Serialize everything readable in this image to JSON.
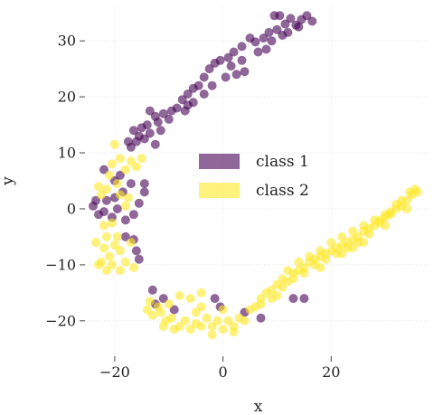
{
  "chart_data": {
    "type": "scatter",
    "title": "",
    "xlabel": "x",
    "ylabel": "y",
    "xlim": [
      -25,
      38
    ],
    "ylim": [
      -26,
      36
    ],
    "xticks": [
      -20,
      0,
      20
    ],
    "yticks": [
      -20,
      -10,
      0,
      10,
      20,
      30
    ],
    "xtick_labels": [
      "−20",
      "0",
      "20"
    ],
    "ytick_labels": [
      "−20",
      "−10",
      "0",
      "10",
      "20",
      "30"
    ],
    "grid": true,
    "legend_position": "center",
    "series": [
      {
        "name": "class 1",
        "color": "#440154",
        "points": [
          [
            9.5,
            34.5
          ],
          [
            10.5,
            34.5
          ],
          [
            12.5,
            34
          ],
          [
            14.5,
            33.8
          ],
          [
            15.5,
            34.5
          ],
          [
            16.5,
            33.5
          ],
          [
            13.5,
            32.8
          ],
          [
            11.5,
            33
          ],
          [
            10,
            32
          ],
          [
            8.5,
            31.5
          ],
          [
            7.5,
            30.5
          ],
          [
            6,
            29.8
          ],
          [
            5,
            30.5
          ],
          [
            3.5,
            29
          ],
          [
            2,
            28
          ],
          [
            1,
            27
          ],
          [
            -0.5,
            26.5
          ],
          [
            -1.5,
            26
          ],
          [
            -2.5,
            25
          ],
          [
            1.5,
            25.5
          ],
          [
            3.5,
            26.5
          ],
          [
            4,
            24.5
          ],
          [
            2.5,
            24
          ],
          [
            0.5,
            23.5
          ],
          [
            -3.5,
            23.5
          ],
          [
            -4.5,
            22
          ],
          [
            -5.5,
            21.5
          ],
          [
            -6.5,
            20.5
          ],
          [
            -3.5,
            20.5
          ],
          [
            -5.5,
            19
          ],
          [
            -6.5,
            18.5
          ],
          [
            -7.5,
            19.5
          ],
          [
            -8.5,
            18
          ],
          [
            -9.5,
            17.5
          ],
          [
            -11,
            17
          ],
          [
            -12.5,
            16.5
          ],
          [
            -13.5,
            17.5
          ],
          [
            -12,
            15.5
          ],
          [
            -14,
            15
          ],
          [
            -15,
            14.5
          ],
          [
            -16.5,
            14
          ],
          [
            -15.5,
            13
          ],
          [
            -16,
            12
          ],
          [
            -14.5,
            12.5
          ],
          [
            -13.5,
            13.5
          ],
          [
            -11.5,
            14
          ],
          [
            -12.5,
            11.5
          ],
          [
            -17,
            11
          ],
          [
            -19,
            6
          ],
          [
            -18.5,
            3
          ],
          [
            -20,
            2
          ],
          [
            -21.5,
            1.5
          ],
          [
            -19.5,
            0
          ],
          [
            -22,
            -0.5
          ],
          [
            -23,
            -1
          ],
          [
            -20.5,
            -1.5
          ],
          [
            -18,
            -2
          ],
          [
            -16.5,
            -1
          ],
          [
            -15.5,
            1
          ],
          [
            -14.5,
            3
          ],
          [
            -14.5,
            4.5
          ],
          [
            -17,
            4.5
          ],
          [
            -20,
            5
          ],
          [
            -22,
            7
          ],
          [
            -23.5,
            1.5
          ],
          [
            -24,
            0.5
          ],
          [
            -18,
            -5
          ],
          [
            -16.5,
            -5.5
          ],
          [
            -16,
            -7.5
          ],
          [
            -15.5,
            -9
          ],
          [
            -13,
            -14.5
          ],
          [
            -12.5,
            -17
          ],
          [
            -1.5,
            -16
          ],
          [
            -0.5,
            -17.5
          ],
          [
            4,
            -18.5
          ],
          [
            7,
            -19.5
          ],
          [
            15,
            -16
          ],
          [
            13,
            -16
          ],
          [
            -11,
            -16
          ],
          [
            -9,
            -18
          ],
          [
            12,
            31.5
          ],
          [
            14,
            32.5
          ],
          [
            8,
            28.5
          ],
          [
            6.5,
            28
          ],
          [
            9,
            30
          ],
          [
            11,
            31
          ],
          [
            -2,
            22
          ],
          [
            -7,
            17.5
          ],
          [
            -10,
            16
          ],
          [
            -17.5,
            12
          ]
        ]
      },
      {
        "name": "class 2",
        "color": "#fde725",
        "points": [
          [
            -20,
            11.5
          ],
          [
            -20.5,
            8
          ],
          [
            -19,
            9
          ],
          [
            -17,
            8.5
          ],
          [
            -16,
            7.5
          ],
          [
            -15,
            9
          ],
          [
            -18,
            7
          ],
          [
            -21,
            6
          ],
          [
            -19.5,
            4.5
          ],
          [
            -21.5,
            3.5
          ],
          [
            -22.5,
            2.5
          ],
          [
            -23,
            4
          ],
          [
            -19,
            2.5
          ],
          [
            -17.5,
            2
          ],
          [
            -18,
            0.5
          ],
          [
            -20.5,
            -2.5
          ],
          [
            -22,
            -3
          ],
          [
            -21.5,
            -5
          ],
          [
            -23.5,
            -6
          ],
          [
            -22,
            -7
          ],
          [
            -20,
            -6.5
          ],
          [
            -19,
            -7.5
          ],
          [
            -21,
            -8.5
          ],
          [
            -22.5,
            -9.5
          ],
          [
            -20.5,
            -10
          ],
          [
            -19,
            -11
          ],
          [
            -21.5,
            -11
          ],
          [
            -23,
            -10
          ],
          [
            -18,
            -9.5
          ],
          [
            -19.5,
            -5
          ],
          [
            -17,
            -6
          ],
          [
            -16.5,
            -10.5
          ],
          [
            -14,
            -18
          ],
          [
            -13,
            -19
          ],
          [
            -11.5,
            -18.5
          ],
          [
            -10.5,
            -20
          ],
          [
            -9.5,
            -19.5
          ],
          [
            -8,
            -21
          ],
          [
            -7,
            -20
          ],
          [
            -6,
            -21.5
          ],
          [
            -5,
            -20.5
          ],
          [
            -4,
            -21
          ],
          [
            -3,
            -19.5
          ],
          [
            -2,
            -21
          ],
          [
            -1,
            -20
          ],
          [
            0,
            -21.5
          ],
          [
            1,
            -20
          ],
          [
            2,
            -21
          ],
          [
            3,
            -19.5
          ],
          [
            2,
            -22
          ],
          [
            -2,
            -22.5
          ],
          [
            -4,
            -17.5
          ],
          [
            -6,
            -16
          ],
          [
            -8,
            -15.5
          ],
          [
            -12,
            -17.5
          ],
          [
            -13.5,
            -16.5
          ],
          [
            -11,
            -21
          ],
          [
            -9,
            -21.5
          ],
          [
            5,
            -18
          ],
          [
            6,
            -17.5
          ],
          [
            7,
            -16
          ],
          [
            8,
            -15
          ],
          [
            9,
            -14.5
          ],
          [
            10,
            -13.5
          ],
          [
            11,
            -12.5
          ],
          [
            12,
            -13
          ],
          [
            13,
            -11.5
          ],
          [
            14,
            -11
          ],
          [
            15,
            -10.5
          ],
          [
            16,
            -9.5
          ],
          [
            17,
            -9
          ],
          [
            18,
            -8.5
          ],
          [
            19,
            -8
          ],
          [
            20,
            -7.5
          ],
          [
            21,
            -7
          ],
          [
            22,
            -6.5
          ],
          [
            23,
            -6
          ],
          [
            24,
            -5.5
          ],
          [
            25,
            -5
          ],
          [
            26,
            -4
          ],
          [
            27,
            -3.5
          ],
          [
            28,
            -3
          ],
          [
            29,
            -2.5
          ],
          [
            30,
            -1.5
          ],
          [
            31,
            -1
          ],
          [
            32,
            0
          ],
          [
            33,
            0.5
          ],
          [
            34,
            1.5
          ],
          [
            35,
            2.5
          ],
          [
            35.5,
            3.5
          ],
          [
            34.5,
            3
          ],
          [
            33,
            1.5
          ],
          [
            31,
            -0.5
          ],
          [
            29,
            -2
          ],
          [
            27,
            -4.5
          ],
          [
            25,
            -6
          ],
          [
            23,
            -7
          ],
          [
            21,
            -8
          ],
          [
            19,
            -9
          ],
          [
            17,
            -10
          ],
          [
            15,
            -11.5
          ],
          [
            13,
            -12.5
          ],
          [
            11,
            -14
          ],
          [
            9,
            -16
          ],
          [
            7,
            -17
          ],
          [
            12,
            -11
          ],
          [
            14,
            -9.5
          ],
          [
            16,
            -8.5
          ],
          [
            18,
            -7.5
          ],
          [
            20,
            -6
          ],
          [
            22,
            -5
          ],
          [
            24,
            -4
          ],
          [
            26,
            -3
          ],
          [
            28,
            -2
          ],
          [
            30,
            -1
          ],
          [
            32,
            0.8
          ],
          [
            22,
            -8
          ],
          [
            26,
            -6
          ],
          [
            30,
            -3
          ],
          [
            -4,
            -15
          ],
          [
            0,
            -18
          ],
          [
            4,
            -20
          ],
          [
            -10,
            -17
          ],
          [
            -5,
            -18.5
          ],
          [
            10,
            -15.5
          ],
          [
            18,
            -10.5
          ],
          [
            24,
            -7
          ],
          [
            34,
            0
          ],
          [
            36,
            3
          ]
        ]
      }
    ]
  }
}
